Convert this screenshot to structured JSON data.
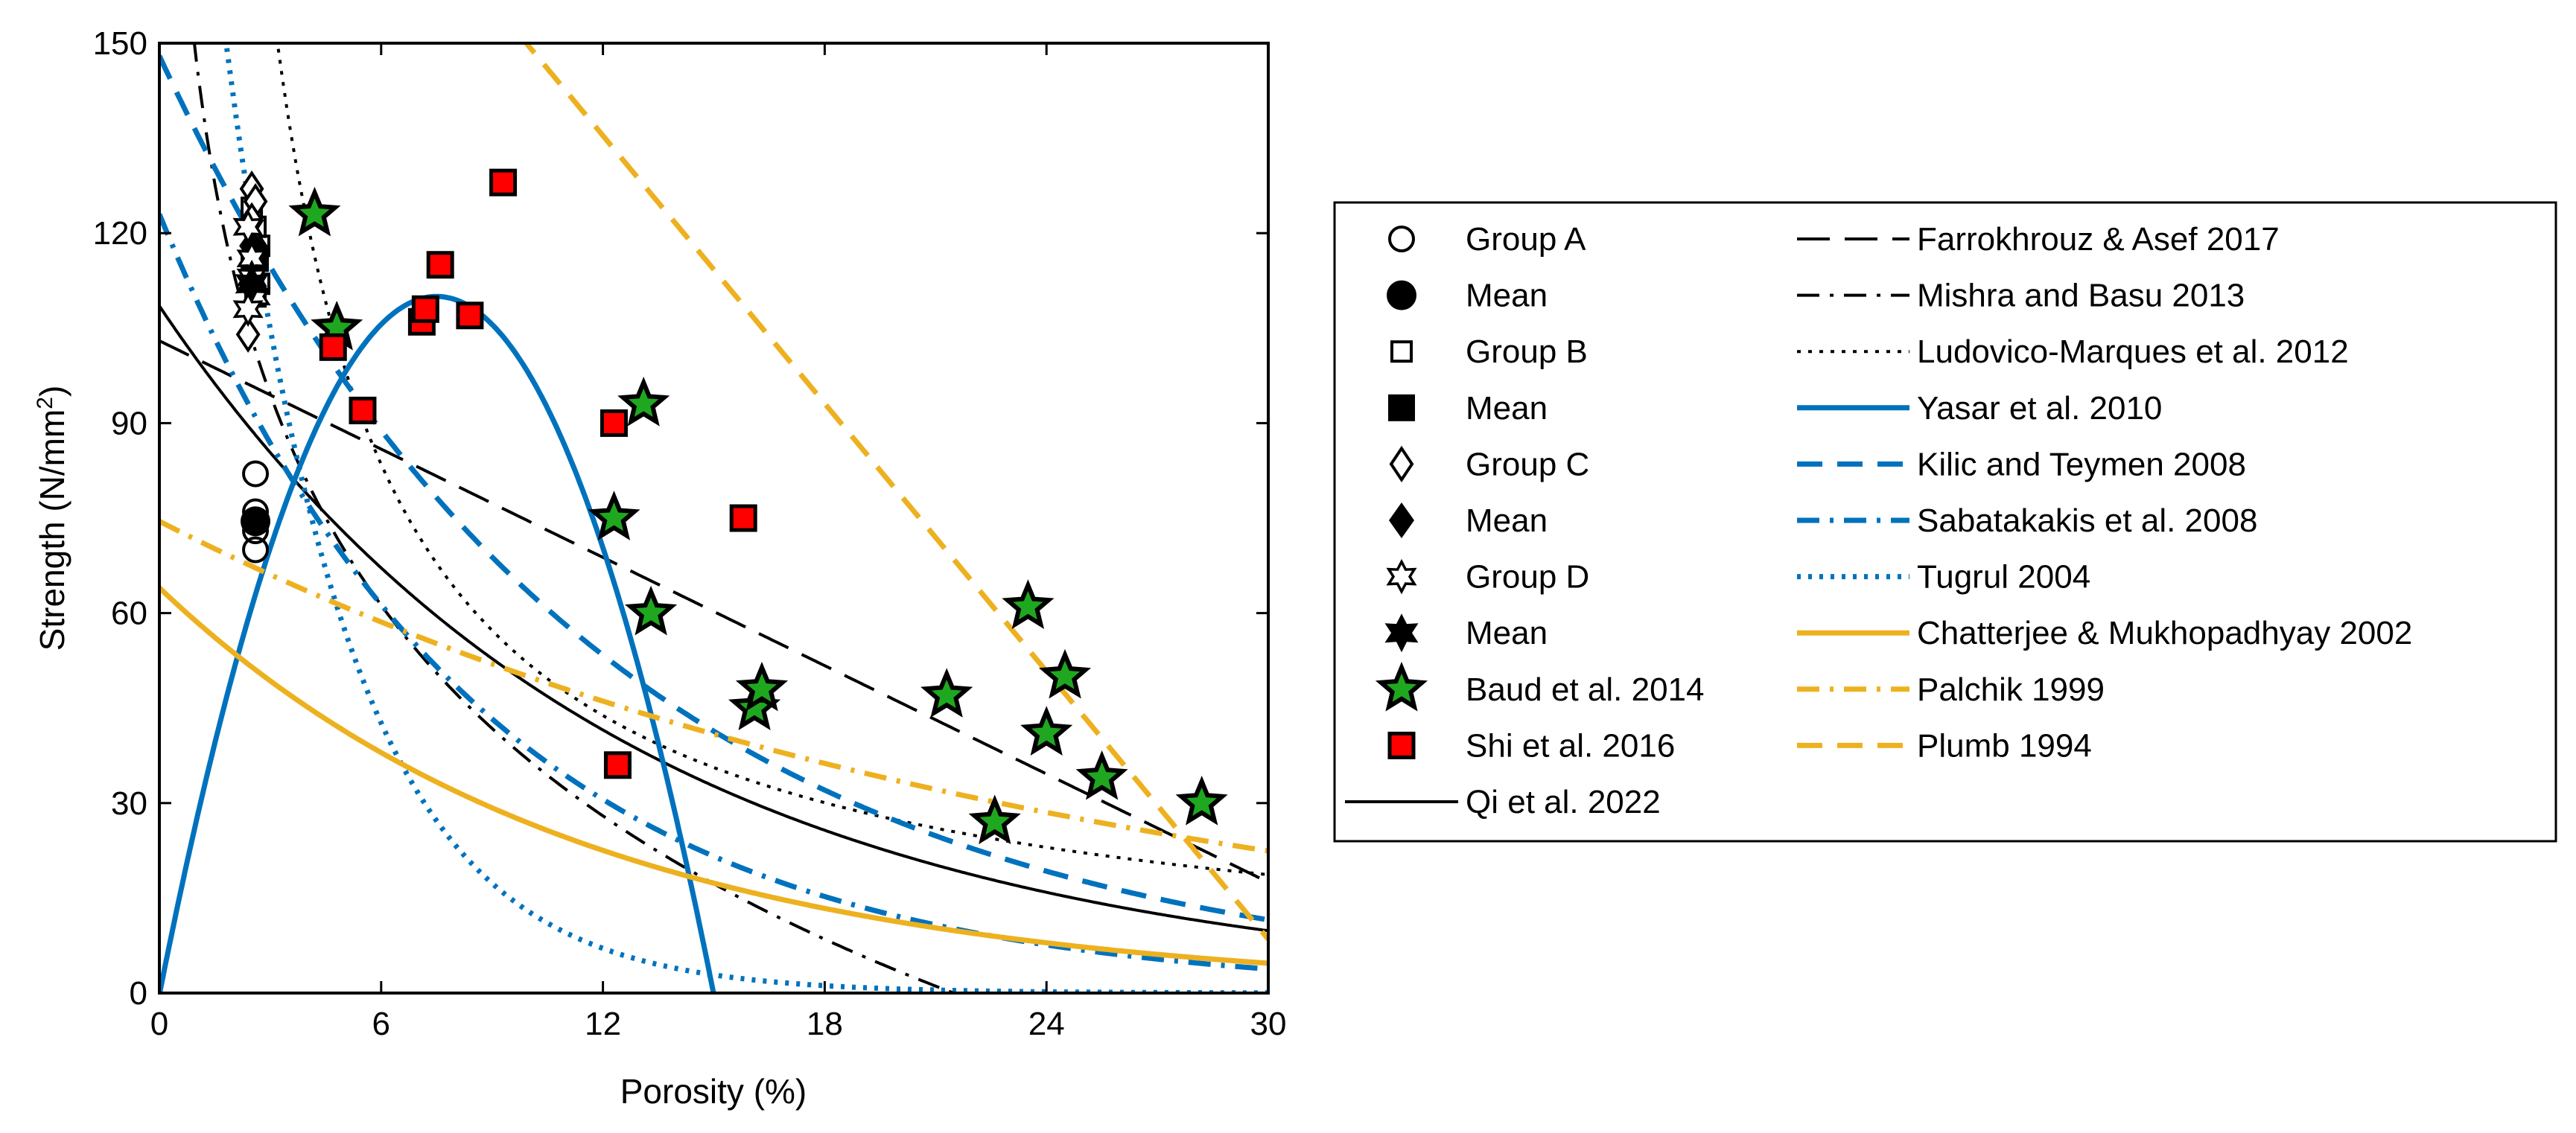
{
  "chart_data": {
    "type": "scatter",
    "xlabel": "Porosity (%)",
    "ylabel": "Strength (N/mm²)",
    "ylabel_parts": [
      "Strength (N/mm",
      "2",
      ")"
    ],
    "xlim": [
      0,
      30
    ],
    "ylim": [
      0,
      150
    ],
    "xticks": [
      0,
      6,
      12,
      18,
      24,
      30
    ],
    "yticks": [
      0,
      30,
      60,
      90,
      120,
      150
    ],
    "grid": false,
    "legend_position": "right",
    "colors": {
      "black": "#000000",
      "blue": "#0072BD",
      "gold": "#EDB120",
      "red": "#FF0000",
      "green": "#1FA81F"
    },
    "series": [
      {
        "name": "Group A",
        "marker": "circle-open",
        "points": [
          [
            2.6,
            82
          ],
          [
            2.6,
            76
          ],
          [
            2.6,
            73
          ],
          [
            2.6,
            70
          ]
        ]
      },
      {
        "name": "Mean",
        "marker": "circle-filled",
        "points": [
          [
            2.6,
            74.5
          ]
        ]
      },
      {
        "name": "Group B",
        "marker": "square-open",
        "points": [
          [
            2.5,
            124
          ],
          [
            2.6,
            121
          ],
          [
            2.7,
            118
          ],
          [
            2.5,
            115
          ],
          [
            2.7,
            112
          ],
          [
            2.6,
            110
          ]
        ]
      },
      {
        "name": "Mean",
        "marker": "square-filled",
        "points": [
          [
            2.6,
            116
          ]
        ]
      },
      {
        "name": "Group C",
        "marker": "diamond-open",
        "points": [
          [
            2.5,
            127
          ],
          [
            2.6,
            125
          ],
          [
            2.5,
            122
          ],
          [
            2.6,
            118
          ],
          [
            2.4,
            104
          ]
        ]
      },
      {
        "name": "Mean",
        "marker": "diamond-filled",
        "points": [
          [
            2.5,
            118
          ]
        ]
      },
      {
        "name": "Group D",
        "marker": "hexagram-open",
        "points": [
          [
            2.4,
            121
          ],
          [
            2.5,
            116
          ],
          [
            2.5,
            113
          ],
          [
            2.6,
            110
          ],
          [
            2.4,
            108
          ]
        ]
      },
      {
        "name": "Mean",
        "marker": "hexagram-filled",
        "points": [
          [
            2.5,
            112
          ]
        ]
      },
      {
        "name": "Baud et al. 2014",
        "marker": "star-green",
        "points": [
          [
            4.2,
            123
          ],
          [
            4.8,
            105
          ],
          [
            12.3,
            75
          ],
          [
            13.1,
            93
          ],
          [
            13.3,
            60
          ],
          [
            16.1,
            45
          ],
          [
            16.3,
            48
          ],
          [
            21.3,
            47
          ],
          [
            22.6,
            27
          ],
          [
            23.5,
            61
          ],
          [
            24.0,
            41
          ],
          [
            24.5,
            50
          ],
          [
            25.5,
            34
          ],
          [
            28.2,
            30
          ]
        ]
      },
      {
        "name": "Shi et al. 2016",
        "marker": "square-red",
        "points": [
          [
            4.7,
            102
          ],
          [
            5.5,
            92
          ],
          [
            7.1,
            106
          ],
          [
            7.2,
            108
          ],
          [
            7.6,
            115
          ],
          [
            8.4,
            107
          ],
          [
            9.3,
            128
          ],
          [
            12.3,
            90
          ],
          [
            12.4,
            36
          ],
          [
            15.8,
            75
          ]
        ]
      }
    ],
    "curves": [
      {
        "name": "Qi et al. 2022",
        "color": "black",
        "style": "solid",
        "model": "exp",
        "params": [
          108.5,
          0.08
        ]
      },
      {
        "name": "Farrokhrouz & Asef 2017",
        "color": "black",
        "style": "long-dash",
        "model": "linear",
        "params": [
          103,
          -2.85
        ]
      },
      {
        "name": "Mishra and Basu 2013",
        "color": "black",
        "style": "dash-dot",
        "model": "log",
        "params": [
          147.3,
          -48.02
        ]
      },
      {
        "name": "Ludovico-Marques et al. 2012",
        "color": "black",
        "style": "dotted",
        "model": "power",
        "params": [
          442,
          -0.93
        ]
      },
      {
        "name": "Yasar et al. 2010",
        "color": "blue",
        "style": "solid",
        "model": "quadratic",
        "params": [
          7.5,
          110,
          1.96
        ]
      },
      {
        "name": "Kilic and Teymen 2008",
        "color": "blue",
        "style": "dash",
        "model": "exp",
        "params": [
          148,
          0.085
        ]
      },
      {
        "name": "Sabatakakis et al. 2008",
        "color": "blue",
        "style": "dash-dot",
        "model": "exp",
        "params": [
          123,
          0.116
        ]
      },
      {
        "name": "Tugrul 2004",
        "color": "blue",
        "style": "dotted",
        "model": "exp",
        "params": [
          258,
          0.3
        ]
      },
      {
        "name": "Chatterjee & Mukhopadhyay 2002",
        "color": "gold",
        "style": "solid",
        "model": "exp",
        "params": [
          64,
          0.087
        ]
      },
      {
        "name": "Palchik 1999",
        "color": "gold",
        "style": "dash-dot",
        "model": "exp",
        "params": [
          74.5,
          0.04
        ]
      },
      {
        "name": "Plumb 1994",
        "color": "gold",
        "style": "dash",
        "model": "linear",
        "params": [
          220,
          -7.05
        ]
      }
    ],
    "legend": {
      "column1": [
        {
          "label": "Group A",
          "symbol": "circle-open"
        },
        {
          "label": "Mean",
          "symbol": "circle-filled"
        },
        {
          "label": "Group B",
          "symbol": "square-open"
        },
        {
          "label": "Mean",
          "symbol": "square-filled"
        },
        {
          "label": "Group C",
          "symbol": "diamond-open"
        },
        {
          "label": "Mean",
          "symbol": "diamond-filled"
        },
        {
          "label": "Group D",
          "symbol": "hexagram-open"
        },
        {
          "label": "Mean",
          "symbol": "hexagram-filled"
        },
        {
          "label": "Baud et al. 2014",
          "symbol": "star-green"
        },
        {
          "label": "Shi et al. 2016",
          "symbol": "square-red"
        },
        {
          "label": "Qi et al. 2022",
          "symbol": "line:black:solid"
        }
      ],
      "column2": [
        {
          "label": "Farrokhrouz & Asef 2017",
          "symbol": "line:black:long-dash"
        },
        {
          "label": "Mishra and Basu 2013",
          "symbol": "line:black:dash-dot"
        },
        {
          "label": "Ludovico-Marques et al. 2012",
          "symbol": "line:black:dotted"
        },
        {
          "label": "Yasar et al. 2010",
          "symbol": "line:blue:solid"
        },
        {
          "label": "Kilic and Teymen 2008",
          "symbol": "line:blue:dash"
        },
        {
          "label": "Sabatakakis et al. 2008",
          "symbol": "line:blue:dash-dot"
        },
        {
          "label": "Tugrul 2004",
          "symbol": "line:blue:dotted"
        },
        {
          "label": "Chatterjee & Mukhopadhyay 2002",
          "symbol": "line:gold:solid"
        },
        {
          "label": "Palchik 1999",
          "symbol": "line:gold:dash-dot"
        },
        {
          "label": "Plumb 1994",
          "symbol": "line:gold:dash"
        }
      ]
    }
  }
}
